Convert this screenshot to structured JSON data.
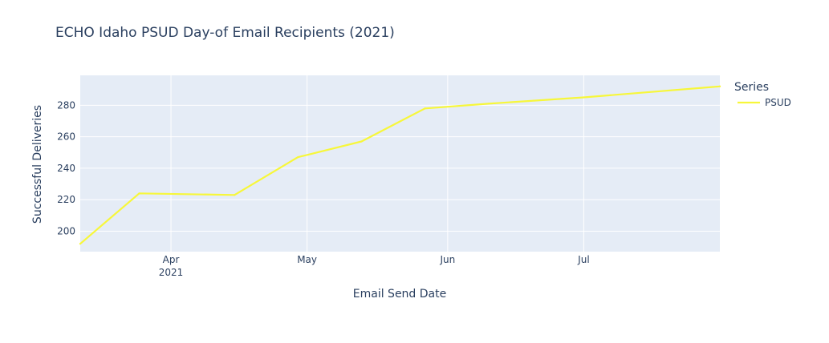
{
  "chart_data": {
    "type": "line",
    "title": "ECHO Idaho PSUD Day-of Email Recipients (2021)",
    "xlabel": "Email Send Date",
    "ylabel": "Successful Deliveries",
    "x_type": "date",
    "x_range": [
      "2021-03-12",
      "2021-07-31"
    ],
    "x_ticks": [
      {
        "date": "2021-04-01",
        "label": "Apr",
        "sublabel": "2021"
      },
      {
        "date": "2021-05-01",
        "label": "May",
        "sublabel": ""
      },
      {
        "date": "2021-06-01",
        "label": "Jun",
        "sublabel": ""
      },
      {
        "date": "2021-07-01",
        "label": "Jul",
        "sublabel": ""
      }
    ],
    "ylim": [
      187,
      299
    ],
    "y_ticks": [
      200,
      220,
      240,
      260,
      280
    ],
    "grid": true,
    "legend": {
      "title": "Series",
      "position": "right"
    },
    "series": [
      {
        "name": "PSUD",
        "color": "#f7f73a",
        "points": [
          {
            "x": "2021-03-12",
            "y": 192
          },
          {
            "x": "2021-03-25",
            "y": 224
          },
          {
            "x": "2021-04-15",
            "y": 223
          },
          {
            "x": "2021-04-29",
            "y": 247
          },
          {
            "x": "2021-05-13",
            "y": 257
          },
          {
            "x": "2021-05-27",
            "y": 278
          },
          {
            "x": "2021-06-10",
            "y": 281
          },
          {
            "x": "2021-07-01",
            "y": 285
          },
          {
            "x": "2021-07-31",
            "y": 292
          }
        ]
      }
    ]
  },
  "colors": {
    "plot_background": "#e5ecf6",
    "gridline": "#ffffff",
    "text": "#2a3f5f"
  }
}
